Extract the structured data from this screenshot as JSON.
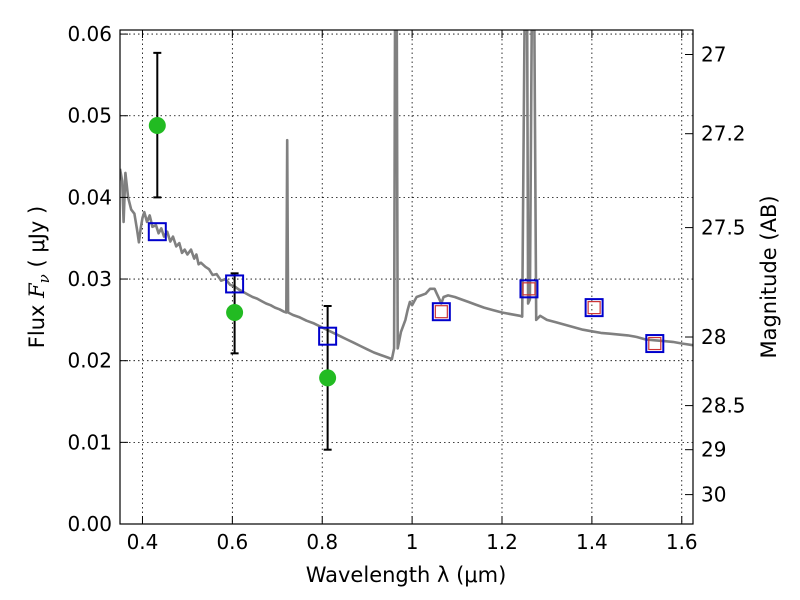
{
  "chart_data": {
    "type": "scatter",
    "xlabel": "Wavelength  λ (μm)",
    "ylabel": "Flux  F_ν  ( μJy )",
    "ylabel_parts": {
      "pre": "Flux  ",
      "f": "F",
      "sub": "ν",
      "post": "  ( μJy )"
    },
    "y2label": "Magnitude (AB)",
    "xlim": [
      0.35,
      1.625
    ],
    "ylim": [
      0,
      0.0605
    ],
    "grid": true,
    "x_ticks": [
      0.4,
      0.6,
      0.8,
      1.0,
      1.2,
      1.4,
      1.6
    ],
    "x_tick_labels": [
      "0.4",
      "0.6",
      "0.8",
      "1",
      "1.2",
      "1.4",
      "1.6"
    ],
    "y_ticks": [
      0.0,
      0.01,
      0.02,
      0.03,
      0.04,
      0.05,
      0.06
    ],
    "y_tick_labels": [
      "0.00",
      "0.01",
      "0.02",
      "0.03",
      "0.04",
      "0.05",
      "0.06"
    ],
    "y2_ticks": [
      {
        "label": "27",
        "flux": 0.0575
      },
      {
        "label": "27.2",
        "flux": 0.0478
      },
      {
        "label": "27.5",
        "flux": 0.0363
      },
      {
        "label": "28",
        "flux": 0.0229
      },
      {
        "label": "28.5",
        "flux": 0.0145
      },
      {
        "label": "29",
        "flux": 0.0091
      },
      {
        "label": "30",
        "flux": 0.0036
      }
    ],
    "colors": {
      "model": "#808080",
      "observed": "#22bb22",
      "model_box": "#0000cc",
      "inner_box": "#cc3333",
      "errorbar": "#000000"
    },
    "series": [
      {
        "type": "line",
        "points": [
          [
            0.35,
            0.0435
          ],
          [
            0.355,
            0.042
          ],
          [
            0.358,
            0.037
          ],
          [
            0.362,
            0.043
          ],
          [
            0.368,
            0.04
          ],
          [
            0.375,
            0.0385
          ],
          [
            0.382,
            0.038
          ],
          [
            0.388,
            0.036
          ],
          [
            0.392,
            0.0345
          ],
          [
            0.396,
            0.0362
          ],
          [
            0.4,
            0.0375
          ],
          [
            0.404,
            0.0382
          ],
          [
            0.41,
            0.037
          ],
          [
            0.416,
            0.0378
          ],
          [
            0.422,
            0.0364
          ],
          [
            0.43,
            0.0366
          ],
          [
            0.436,
            0.0356
          ],
          [
            0.442,
            0.0362
          ],
          [
            0.448,
            0.0352
          ],
          [
            0.455,
            0.0358
          ],
          [
            0.462,
            0.0346
          ],
          [
            0.468,
            0.0352
          ],
          [
            0.475,
            0.034
          ],
          [
            0.482,
            0.0344
          ],
          [
            0.488,
            0.0332
          ],
          [
            0.494,
            0.0336
          ],
          [
            0.5,
            0.033
          ],
          [
            0.508,
            0.0336
          ],
          [
            0.515,
            0.0325
          ],
          [
            0.52,
            0.033
          ],
          [
            0.525,
            0.0318
          ],
          [
            0.53,
            0.032
          ],
          [
            0.54,
            0.0315
          ],
          [
            0.548,
            0.0312
          ],
          [
            0.556,
            0.0305
          ],
          [
            0.565,
            0.0306
          ],
          [
            0.575,
            0.0298
          ],
          [
            0.585,
            0.03
          ],
          [
            0.595,
            0.0293
          ],
          [
            0.605,
            0.0291
          ],
          [
            0.615,
            0.0287
          ],
          [
            0.625,
            0.0284
          ],
          [
            0.635,
            0.0281
          ],
          [
            0.645,
            0.0278
          ],
          [
            0.655,
            0.0276
          ],
          [
            0.665,
            0.0273
          ],
          [
            0.675,
            0.027
          ],
          [
            0.685,
            0.0268
          ],
          [
            0.695,
            0.0265
          ],
          [
            0.705,
            0.0263
          ],
          [
            0.715,
            0.026
          ],
          [
            0.72,
            0.0259
          ],
          [
            0.722,
            0.047
          ],
          [
            0.724,
            0.0259
          ],
          [
            0.735,
            0.0256
          ],
          [
            0.75,
            0.0253
          ],
          [
            0.765,
            0.0249
          ],
          [
            0.78,
            0.0246
          ],
          [
            0.795,
            0.0242
          ],
          [
            0.81,
            0.0238
          ],
          [
            0.825,
            0.0234
          ],
          [
            0.84,
            0.023
          ],
          [
            0.855,
            0.0226
          ],
          [
            0.87,
            0.0222
          ],
          [
            0.885,
            0.0218
          ],
          [
            0.9,
            0.0214
          ],
          [
            0.915,
            0.021
          ],
          [
            0.93,
            0.0207
          ],
          [
            0.945,
            0.0204
          ],
          [
            0.955,
            0.0202
          ],
          [
            0.96,
            0.0215
          ],
          [
            0.962,
            0.0605
          ],
          [
            0.966,
            0.0605
          ],
          [
            0.968,
            0.0215
          ],
          [
            0.975,
            0.0235
          ],
          [
            0.985,
            0.025
          ],
          [
            0.99,
            0.0262
          ],
          [
            0.995,
            0.0272
          ],
          [
            1.0,
            0.0268
          ],
          [
            1.01,
            0.0278
          ],
          [
            1.02,
            0.028
          ],
          [
            1.03,
            0.0282
          ],
          [
            1.04,
            0.0288
          ],
          [
            1.05,
            0.0288
          ],
          [
            1.055,
            0.0282
          ],
          [
            1.06,
            0.0276
          ],
          [
            1.065,
            0.027
          ],
          [
            1.07,
            0.0278
          ],
          [
            1.08,
            0.028
          ],
          [
            1.095,
            0.0278
          ],
          [
            1.11,
            0.0275
          ],
          [
            1.125,
            0.0272
          ],
          [
            1.14,
            0.0269
          ],
          [
            1.16,
            0.0265
          ],
          [
            1.18,
            0.0262
          ],
          [
            1.2,
            0.0259
          ],
          [
            1.22,
            0.0257
          ],
          [
            1.24,
            0.0255
          ],
          [
            1.245,
            0.0254
          ],
          [
            1.25,
            0.0605
          ],
          [
            1.256,
            0.0605
          ],
          [
            1.258,
            0.027
          ],
          [
            1.262,
            0.0275
          ],
          [
            1.266,
            0.0605
          ],
          [
            1.272,
            0.0605
          ],
          [
            1.276,
            0.025
          ],
          [
            1.285,
            0.0255
          ],
          [
            1.3,
            0.025
          ],
          [
            1.32,
            0.0247
          ],
          [
            1.34,
            0.0244
          ],
          [
            1.36,
            0.0241
          ],
          [
            1.38,
            0.0238
          ],
          [
            1.4,
            0.0236
          ],
          [
            1.42,
            0.0234
          ],
          [
            1.44,
            0.0233
          ],
          [
            1.46,
            0.0232
          ],
          [
            1.48,
            0.0231
          ],
          [
            1.5,
            0.0229
          ],
          [
            1.52,
            0.0226
          ],
          [
            1.54,
            0.0225
          ],
          [
            1.56,
            0.0224
          ],
          [
            1.58,
            0.0223
          ],
          [
            1.6,
            0.0221
          ],
          [
            1.625,
            0.0219
          ]
        ]
      },
      {
        "type": "errorbar",
        "points": [
          {
            "x": 0.433,
            "y": 0.0488,
            "low": 0.04,
            "high": 0.0577
          },
          {
            "x": 0.605,
            "y": 0.0259,
            "low": 0.0209,
            "high": 0.0307
          },
          {
            "x": 0.812,
            "y": 0.0179,
            "low": 0.0091,
            "high": 0.0267
          }
        ]
      },
      {
        "type": "scatter",
        "points": [
          {
            "x": 0.433,
            "y": 0.0358
          },
          {
            "x": 0.605,
            "y": 0.0294
          },
          {
            "x": 0.812,
            "y": 0.023
          },
          {
            "x": 1.065,
            "y": 0.026
          },
          {
            "x": 1.26,
            "y": 0.0288
          },
          {
            "x": 1.405,
            "y": 0.0265
          },
          {
            "x": 1.54,
            "y": 0.0221
          }
        ]
      },
      {
        "type": "scatter",
        "points": [
          {
            "x": 1.065,
            "y": 0.026
          },
          {
            "x": 1.26,
            "y": 0.0288
          },
          {
            "x": 1.405,
            "y": 0.0265
          },
          {
            "x": 1.54,
            "y": 0.0221
          }
        ]
      }
    ]
  }
}
